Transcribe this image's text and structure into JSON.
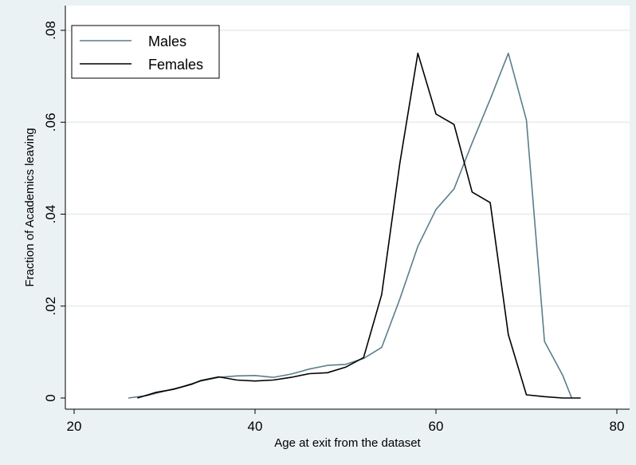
{
  "chart_data": {
    "type": "line",
    "xlabel": "Age at exit from the dataset",
    "ylabel": "Fraction of Academics leaving",
    "xlim": [
      20,
      80
    ],
    "ylim": [
      0,
      0.08
    ],
    "x_ticks": [
      20,
      40,
      60,
      80
    ],
    "x_tick_labels": [
      "20",
      "40",
      "60",
      "80"
    ],
    "y_ticks": [
      0,
      0.02,
      0.04,
      0.06,
      0.08
    ],
    "y_tick_labels": [
      "0",
      ".02",
      ".04",
      ".06",
      ".08"
    ],
    "grid": "horizontal",
    "legend": {
      "position": "top-left",
      "entries": [
        "Males",
        "Females"
      ]
    },
    "series": [
      {
        "name": "Males",
        "color": "#5a7d8c",
        "x": [
          26,
          28,
          30,
          32,
          34,
          36,
          38,
          40,
          42,
          44,
          46,
          48,
          50,
          52,
          54,
          56,
          58,
          60,
          62,
          64,
          66,
          68,
          70,
          72,
          74,
          75
        ],
        "y": [
          0,
          0.0005,
          0.0015,
          0.0025,
          0.0037,
          0.0045,
          0.0048,
          0.0049,
          0.0045,
          0.0052,
          0.0063,
          0.0071,
          0.0073,
          0.0086,
          0.011,
          0.0215,
          0.033,
          0.041,
          0.0455,
          0.0555,
          0.065,
          0.075,
          0.0605,
          0.0123,
          0.005,
          0
        ]
      },
      {
        "name": "Females",
        "color": "#000000",
        "x": [
          27,
          29,
          31,
          33,
          34,
          36,
          38,
          40,
          42,
          44,
          46,
          48,
          50,
          52,
          54,
          56,
          58,
          60,
          62,
          64,
          66,
          68,
          70,
          72,
          74,
          76
        ],
        "y": [
          0,
          0.0012,
          0.0019,
          0.003,
          0.0038,
          0.0046,
          0.0039,
          0.0037,
          0.0039,
          0.0045,
          0.0053,
          0.0055,
          0.0067,
          0.0088,
          0.0225,
          0.051,
          0.075,
          0.0618,
          0.0595,
          0.0448,
          0.0425,
          0.0138,
          0.0007,
          0.0003,
          0,
          0
        ]
      }
    ]
  }
}
